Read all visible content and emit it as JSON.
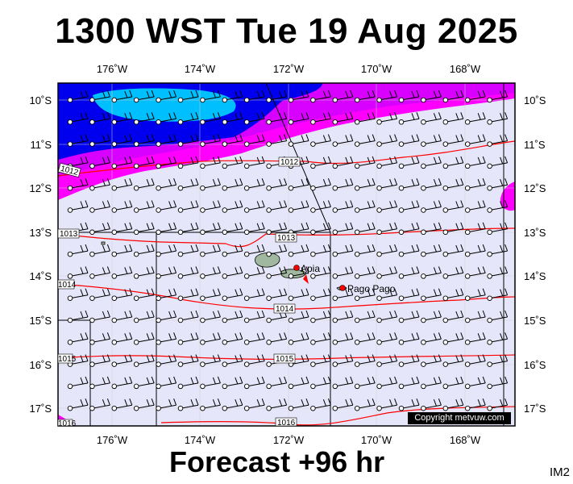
{
  "header": {
    "title": "1300 WST Tue 19 Aug 2025"
  },
  "footer": {
    "forecast": "Forecast +96 hr",
    "code": "IM2"
  },
  "copyright": "Copyright metvuw.com",
  "axes": {
    "lon_labels": [
      "176˚W",
      "174˚W",
      "172˚W",
      "170˚W",
      "168˚W"
    ],
    "lat_labels": [
      "10˚S",
      "11˚S",
      "12˚S",
      "13˚S",
      "14˚S",
      "15˚S",
      "16˚S",
      "17˚S"
    ]
  },
  "isobar_labels": [
    "1012",
    "1012",
    "1013",
    "1013",
    "1014",
    "1014",
    "1015",
    "1015",
    "1016",
    "1016"
  ],
  "places": {
    "apia": "Apia",
    "pago": "Pago Pago"
  },
  "colors": {
    "background_fill": "#e6e6fa",
    "wind_strong": "#0000ee",
    "wind_core": "#00bfff",
    "wind_moderate": "#ff00ff",
    "isobar": "#ff0000",
    "land": "#a0b8a0"
  }
}
